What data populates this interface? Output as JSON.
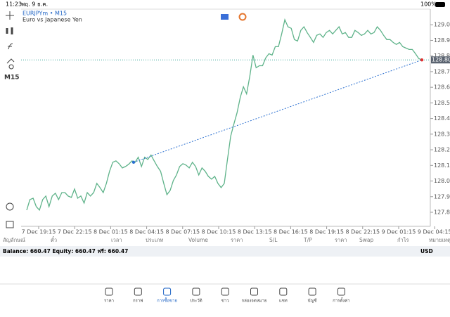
{
  "status_bar": {
    "time": "11:23",
    "date": "พฤ. 9 ธ.ค.",
    "battery": "100%"
  },
  "toolbar": {
    "timeframe": "M15"
  },
  "chart_data": {
    "type": "line",
    "title": "EURJPYm • M15",
    "subtitle": "Euro vs Japanese Yen",
    "color": "#5fb38a",
    "values": [
      127.844,
      127.911,
      127.92,
      127.866,
      127.844,
      127.911,
      127.934,
      127.866,
      127.934,
      127.952,
      127.911,
      127.956,
      127.956,
      127.934,
      127.925,
      127.979,
      127.92,
      127.934,
      127.889,
      127.956,
      127.934,
      127.956,
      128.015,
      127.988,
      127.956,
      128.015,
      128.092,
      128.15,
      128.159,
      128.141,
      128.114,
      128.123,
      128.137,
      128.159,
      128.15,
      128.182,
      128.123,
      128.182,
      128.168,
      128.196,
      128.159,
      128.123,
      128.092,
      128.015,
      127.943,
      127.97,
      128.033,
      128.069,
      128.123,
      128.141,
      128.132,
      128.114,
      128.15,
      128.123,
      128.069,
      128.114,
      128.092,
      128.06,
      128.042,
      128.06,
      128.015,
      127.988,
      128.015,
      128.168,
      128.317,
      128.394,
      128.466,
      128.565,
      128.633,
      128.588,
      128.701,
      128.836,
      128.755,
      128.768,
      128.768,
      128.818,
      128.845,
      128.836,
      128.89,
      128.89,
      128.971,
      129.062,
      129.017,
      129.007,
      128.935,
      128.926,
      128.994,
      129.017,
      128.98,
      128.949,
      128.917,
      128.962,
      128.971,
      128.949,
      128.98,
      128.994,
      128.971,
      128.994,
      129.017,
      128.971,
      128.98,
      128.949,
      128.949,
      128.994,
      128.98,
      128.962,
      128.971,
      128.994,
      128.971,
      128.98,
      129.017,
      128.994,
      128.962,
      128.935,
      128.935,
      128.917,
      128.904,
      128.917,
      128.89,
      128.881,
      128.872,
      128.872,
      128.845,
      128.814,
      128.805
    ],
    "ylim": [
      127.74,
      129.13
    ],
    "yticks": [
      {
        "value": 129.03,
        "label": "129.030"
      },
      {
        "value": 128.93,
        "label": "128.930"
      },
      {
        "value": 128.83,
        "label": "128.830"
      },
      {
        "value": 128.73,
        "label": "128.730"
      },
      {
        "value": 128.63,
        "label": "128.630"
      },
      {
        "value": 128.53,
        "label": "128.530"
      },
      {
        "value": 128.43,
        "label": "128.430"
      },
      {
        "value": 128.33,
        "label": "128.330"
      },
      {
        "value": 128.23,
        "label": "128.230"
      },
      {
        "value": 128.13,
        "label": "128.130"
      },
      {
        "value": 128.03,
        "label": "128.030"
      },
      {
        "value": 127.93,
        "label": "127.930"
      },
      {
        "value": 127.83,
        "label": "127.830"
      }
    ],
    "x_labels": [
      "7 Dec 19:15",
      "7 Dec 22:15",
      "8 Dec 01:15",
      "8 Dec 04:15",
      "8 Dec 07:15",
      "8 Dec 10:15",
      "8 Dec 13:15",
      "8 Dec 16:15",
      "8 Dec 19:15",
      "8 Dec 22:15",
      "9 Dec 01:15",
      "9 Dec 04:15"
    ],
    "current_price": {
      "value": 128.805,
      "label": "128.805"
    },
    "trend_line": [
      128.15,
      128.805
    ]
  },
  "table": {
    "columns": [
      "สัญลักษณ์",
      "ตั๋ว",
      "เวลา",
      "ประเภท",
      "Volume",
      "ราคา",
      "S/L",
      "T/P",
      "ราคา",
      "Swap",
      "กำไร",
      "หมายเหตุ"
    ]
  },
  "balance": {
    "text": "Balance: 660.47 Equity: 660.47 ฟรี: 660.47",
    "currency": "USD"
  },
  "tabs": [
    "ราคา",
    "กราฟ",
    "การซื้อขาย",
    "ประวัติ",
    "ข่าว",
    "กล่องจดหมาย",
    "แชท",
    "บัญชี",
    "การตั้งค่า"
  ]
}
